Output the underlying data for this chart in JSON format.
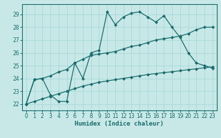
{
  "xlabel": "Humidex (Indice chaleur)",
  "background_color": "#c8e8e8",
  "grid_color": "#a8d8d8",
  "line_color": "#1a6b6b",
  "xlim": [
    -0.5,
    23.5
  ],
  "ylim": [
    21.5,
    29.8
  ],
  "yticks": [
    22,
    23,
    24,
    25,
    26,
    27,
    28,
    29
  ],
  "xticks": [
    0,
    1,
    2,
    3,
    4,
    5,
    6,
    7,
    8,
    9,
    10,
    11,
    12,
    13,
    14,
    15,
    16,
    17,
    18,
    19,
    20,
    21,
    22,
    23
  ],
  "series": [
    {
      "x": [
        0,
        1,
        2,
        3,
        4,
        5,
        6,
        7,
        8,
        9,
        10,
        11,
        12,
        13,
        14,
        15,
        16,
        17,
        18,
        19,
        20,
        21,
        22,
        23
      ],
      "y": [
        22.0,
        23.9,
        24.0,
        22.7,
        22.2,
        22.2,
        25.2,
        24.0,
        26.0,
        26.2,
        29.2,
        28.2,
        28.8,
        29.1,
        29.2,
        28.8,
        28.4,
        28.9,
        28.0,
        27.2,
        26.0,
        25.2,
        25.0,
        24.8
      ]
    },
    {
      "x": [
        0,
        1,
        2,
        3,
        4,
        5,
        6,
        7,
        8,
        9,
        10,
        11,
        12,
        13,
        14,
        15,
        16,
        17,
        18,
        19,
        20,
        21,
        22,
        23
      ],
      "y": [
        22.0,
        23.9,
        24.0,
        24.2,
        24.5,
        24.7,
        25.2,
        25.5,
        25.8,
        25.9,
        26.0,
        26.1,
        26.3,
        26.5,
        26.6,
        26.8,
        27.0,
        27.1,
        27.2,
        27.3,
        27.5,
        27.8,
        28.0,
        28.0
      ]
    },
    {
      "x": [
        0,
        1,
        2,
        3,
        4,
        5,
        6,
        7,
        8,
        9,
        10,
        11,
        12,
        13,
        14,
        15,
        16,
        17,
        18,
        19,
        20,
        21,
        22,
        23
      ],
      "y": [
        22.0,
        22.2,
        22.4,
        22.6,
        22.8,
        23.0,
        23.2,
        23.4,
        23.55,
        23.7,
        23.8,
        23.9,
        24.0,
        24.1,
        24.2,
        24.3,
        24.38,
        24.45,
        24.52,
        24.6,
        24.68,
        24.75,
        24.83,
        24.9
      ]
    }
  ]
}
